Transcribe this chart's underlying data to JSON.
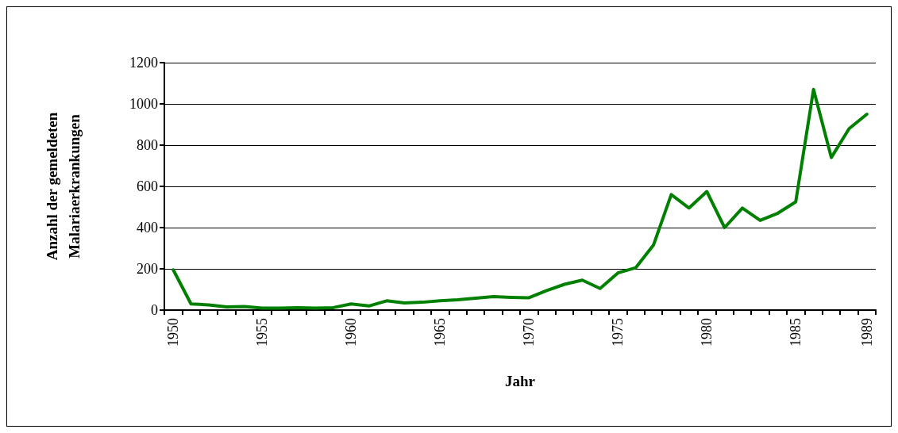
{
  "chart_data": {
    "type": "line",
    "xlabel": "Jahr",
    "ylabel": "Anzahl der gemeldeten\nMalariaerkrankungen",
    "categories": [
      "1950",
      null,
      null,
      null,
      null,
      "1955",
      null,
      null,
      null,
      null,
      "1960",
      null,
      null,
      null,
      null,
      "1965",
      null,
      null,
      null,
      null,
      "1970",
      null,
      null,
      null,
      null,
      "1975",
      null,
      null,
      null,
      null,
      "1980",
      null,
      null,
      null,
      null,
      "1985",
      null,
      null,
      null,
      "1989"
    ],
    "series": [
      {
        "color": "#008000",
        "values": [
          195,
          30,
          25,
          15,
          17,
          10,
          10,
          12,
          10,
          12,
          30,
          20,
          45,
          35,
          38,
          45,
          50,
          58,
          65,
          62,
          60,
          95,
          125,
          145,
          105,
          180,
          205,
          315,
          560,
          495,
          575,
          400,
          495,
          435,
          470,
          525,
          1070,
          740,
          880,
          950
        ]
      }
    ],
    "ylim": [
      0,
      1200
    ],
    "yticks": [
      0,
      200,
      400,
      600,
      800,
      1000,
      1200
    ],
    "grid": "y",
    "marker": "none",
    "line_style": "solid"
  }
}
